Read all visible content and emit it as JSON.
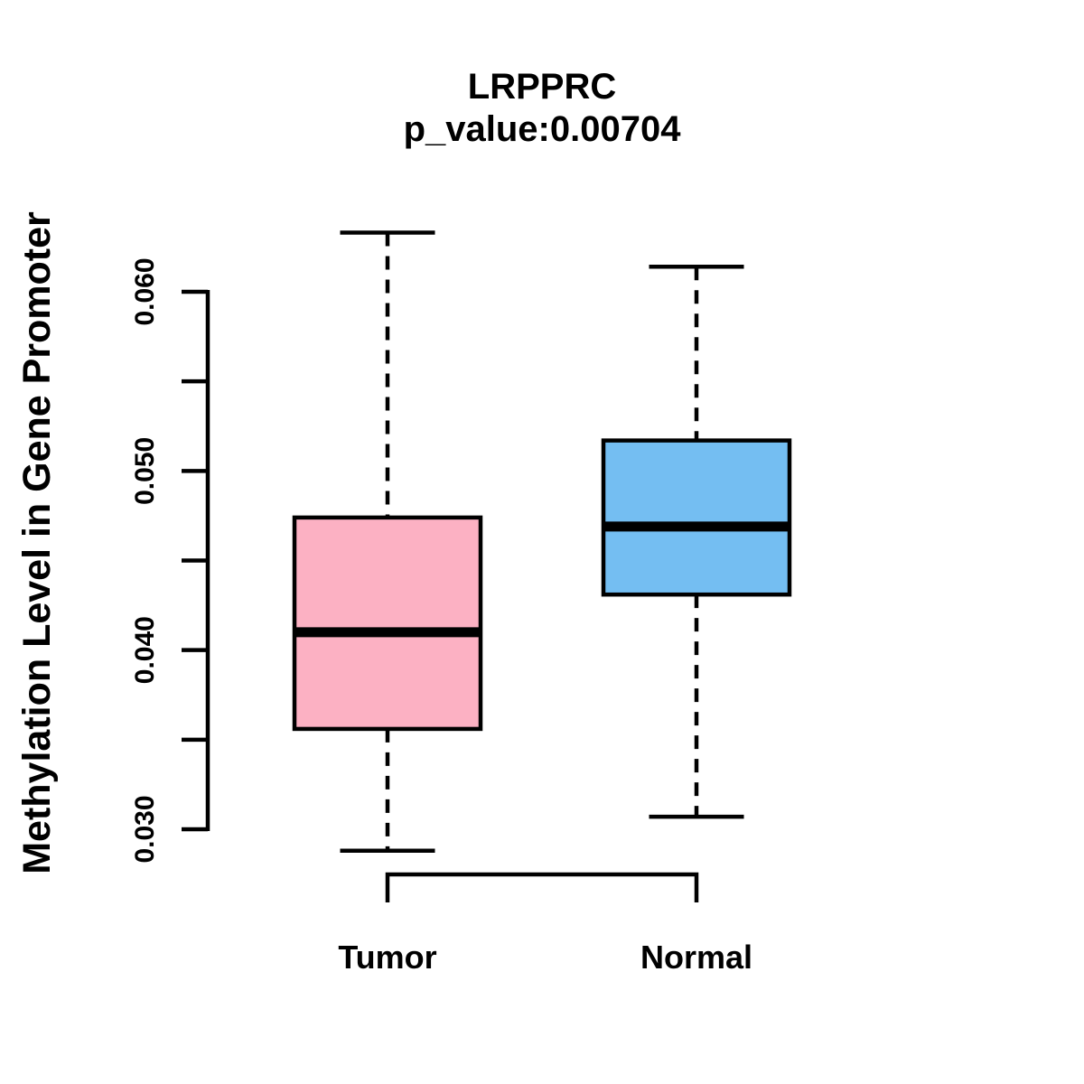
{
  "page": {
    "background": "#FFFFFF",
    "foreground": "#000000"
  },
  "chart_data": {
    "type": "boxplot",
    "title": "LRPPRC",
    "subtitle": "p_value:0.00704",
    "ylabel": "Methylation Level in Gene Promoter",
    "xlabel": "",
    "categories": [
      "Tumor",
      "Normal"
    ],
    "series": [
      {
        "name": "Tumor",
        "color": "#FCB1C3",
        "whisker_low": 0.0288,
        "q1": 0.0356,
        "median": 0.041,
        "q3": 0.0474,
        "whisker_high": 0.0633
      },
      {
        "name": "Normal",
        "color": "#74BEF2",
        "whisker_low": 0.0307,
        "q1": 0.0431,
        "median": 0.0469,
        "q3": 0.0517,
        "whisker_high": 0.0614
      }
    ],
    "y_axis": {
      "tick_range": [
        0.03,
        0.06
      ],
      "labeled_ticks": [
        {
          "value": 0.03,
          "label": "0.030"
        },
        {
          "value": 0.04,
          "label": "0.040"
        },
        {
          "value": 0.05,
          "label": "0.050"
        },
        {
          "value": 0.06,
          "label": "0.060"
        }
      ],
      "minor_ticks": [
        0.035,
        0.045,
        0.055
      ]
    },
    "ylim": [
      0.0285,
      0.064
    ],
    "grid": false,
    "legend": false,
    "box_line_color": "#000000"
  }
}
